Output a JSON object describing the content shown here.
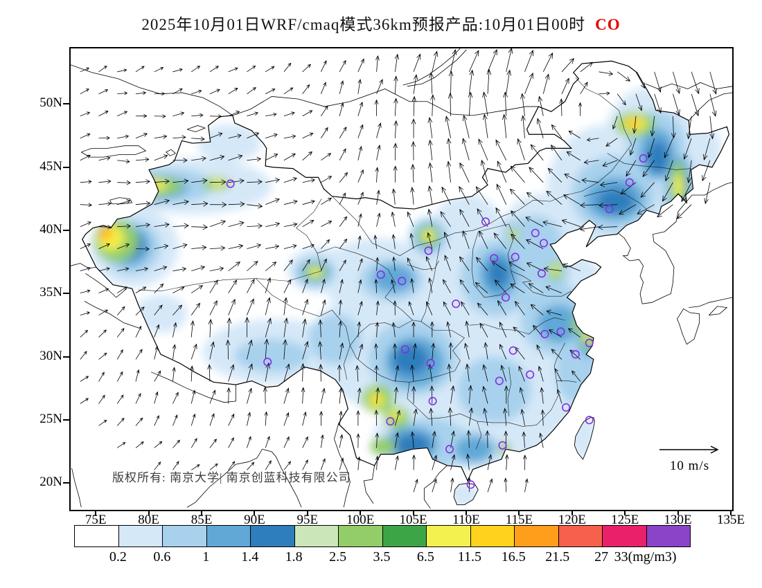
{
  "title": {
    "main": "2025年10月01日WRF/cmaq模式36km预报产品:10月01日00时",
    "species": "CO",
    "species_color": "#E60000"
  },
  "map": {
    "copyright": "版权所有: 南京大学| 南京创蓝科技有限公司",
    "wind_reference_label": "10 m/s"
  },
  "chart_data": {
    "type": "heatmap",
    "subtype": "filled-contour-map-with-wind-vectors",
    "model": "WRF/cmaq",
    "resolution": "36km",
    "forecast_date": "2025-10-01",
    "forecast_hour": "10月01日00时",
    "species": "CO",
    "units": "mg/m3",
    "lon_range": [
      72.5,
      135
    ],
    "lat_range": [
      18,
      54.5
    ],
    "lon_tick_values": [
      75,
      80,
      85,
      90,
      95,
      100,
      105,
      110,
      115,
      120,
      125,
      130,
      135
    ],
    "lon_tick_labels": [
      "75E",
      "80E",
      "85E",
      "90E",
      "95E",
      "100E",
      "105E",
      "110E",
      "115E",
      "120E",
      "125E",
      "130E",
      "135E"
    ],
    "lat_tick_values": [
      50,
      45,
      40,
      35,
      30,
      25,
      20
    ],
    "lat_tick_labels": [
      "50N",
      "45N",
      "40N",
      "35N",
      "30N",
      "25N",
      "20N"
    ],
    "colorbar": {
      "boundary_values": [
        0.2,
        0.6,
        1,
        1.4,
        1.8,
        2.5,
        3.5,
        6.5,
        11.5,
        16.5,
        21.5,
        27,
        33
      ],
      "boundary_labels": [
        "0.2",
        "0.6",
        "1",
        "1.4",
        "1.8",
        "2.5",
        "3.5",
        "6.5",
        "11.5",
        "16.5",
        "21.5",
        "27",
        "33(mg/m3)"
      ],
      "colors": [
        "#FFFFFF",
        "#D5E8F8",
        "#A7D1ED",
        "#61A8D7",
        "#2E7DBC",
        "#CBE7B9",
        "#93CD67",
        "#3CA647",
        "#F2F150",
        "#FFD21E",
        "#FF9E1A",
        "#F7604C",
        "#E8216A",
        "#8B44C8"
      ],
      "units": "mg/m3"
    },
    "wind_reference": {
      "speed": 10,
      "speed_label": "10 m/s"
    },
    "station_marker_color": "#8A2BE2",
    "stations": [
      [
        87.6,
        43.8
      ],
      [
        91.1,
        29.7
      ],
      [
        101.8,
        36.6
      ],
      [
        103.8,
        36.1
      ],
      [
        106.3,
        38.5
      ],
      [
        111.7,
        40.8
      ],
      [
        112.5,
        37.9
      ],
      [
        116.4,
        39.9
      ],
      [
        117.2,
        39.1
      ],
      [
        114.5,
        38.0
      ],
      [
        123.4,
        41.8
      ],
      [
        125.3,
        43.9
      ],
      [
        126.6,
        45.8
      ],
      [
        117.0,
        36.7
      ],
      [
        113.6,
        34.8
      ],
      [
        108.9,
        34.3
      ],
      [
        104.1,
        30.7
      ],
      [
        106.5,
        29.6
      ],
      [
        114.3,
        30.6
      ],
      [
        117.3,
        31.9
      ],
      [
        118.8,
        32.1
      ],
      [
        121.5,
        31.2
      ],
      [
        120.2,
        30.3
      ],
      [
        115.9,
        28.7
      ],
      [
        113.0,
        28.2
      ],
      [
        106.7,
        26.6
      ],
      [
        102.7,
        25.0
      ],
      [
        119.3,
        26.1
      ],
      [
        121.5,
        25.1
      ],
      [
        113.3,
        23.1
      ],
      [
        108.3,
        22.8
      ],
      [
        110.3,
        20.0
      ]
    ],
    "field_blobs": [
      {
        "level": 2,
        "ellipses": [
          [
            104,
            31,
            8.5,
            5.5
          ],
          [
            112,
            33,
            9,
            7
          ],
          [
            118,
            34,
            5.5,
            5
          ],
          [
            113,
            25.5,
            8,
            4.5
          ],
          [
            121,
            29.5,
            3.5,
            4
          ],
          [
            123.5,
            43.5,
            6,
            5
          ],
          [
            127.5,
            47.5,
            4.5,
            4
          ],
          [
            131.5,
            46.5,
            2.5,
            2.5
          ],
          [
            84,
            43.6,
            7.5,
            2.2
          ],
          [
            87.5,
            47,
            3,
            1.5
          ],
          [
            78.5,
            38.8,
            4.2,
            3.2
          ],
          [
            101.5,
            36.5,
            5.5,
            3
          ],
          [
            92,
            30.5,
            7,
            2.6
          ],
          [
            99,
            31,
            4,
            3.5
          ],
          [
            81,
            33.5,
            2.5,
            1.5
          ],
          [
            110,
            38.5,
            4,
            4.5
          ],
          [
            106,
            23.5,
            5,
            3
          ],
          [
            117,
            39.5,
            4,
            3.5
          ],
          [
            122,
            41,
            3.5,
            2.5
          ],
          [
            130,
            44,
            2.5,
            4
          ],
          [
            96,
            37,
            3,
            1.8
          ],
          [
            109.5,
            19.2,
            1.6,
            1
          ],
          [
            121,
            23.8,
            1.1,
            1.8
          ]
        ]
      },
      {
        "level": 3,
        "ellipses": [
          [
            104.8,
            30,
            4.2,
            3
          ],
          [
            112.8,
            36.3,
            3.5,
            3
          ],
          [
            118.5,
            33,
            3.5,
            2.8
          ],
          [
            112.5,
            27.5,
            3.5,
            2.6
          ],
          [
            123.8,
            43,
            4,
            3
          ],
          [
            127.8,
            46.8,
            2.8,
            2.8
          ],
          [
            81.5,
            43.6,
            4.5,
            1.4
          ],
          [
            78.2,
            38.8,
            2.8,
            2.2
          ],
          [
            102.8,
            36.2,
            3,
            1.7
          ],
          [
            106.5,
            23.3,
            3.5,
            2
          ],
          [
            120.3,
            29,
            2,
            2.6
          ],
          [
            116.3,
            39.3,
            2.6,
            2
          ],
          [
            129.8,
            43.8,
            1.6,
            3
          ],
          [
            95.6,
            36.8,
            2,
            1.2
          ],
          [
            106.3,
            39.6,
            1.8,
            1.5
          ],
          [
            91.5,
            30.2,
            3.5,
            1.3
          ],
          [
            97.5,
            31.5,
            2.5,
            2
          ],
          [
            110.3,
            22.9,
            2.6,
            1.4
          ],
          [
            117.8,
            36.8,
            1.8,
            1.6
          ],
          [
            114.5,
            39.9,
            1.3,
            1.1
          ]
        ]
      },
      {
        "level": 4,
        "ellipses": [
          [
            105,
            29.7,
            2.8,
            2
          ],
          [
            112.9,
            36.6,
            1.8,
            1.9
          ],
          [
            118.6,
            32.7,
            2,
            1.5
          ],
          [
            123.9,
            42.6,
            2.8,
            1.7
          ],
          [
            127.9,
            46.2,
            1.7,
            2
          ],
          [
            80.6,
            43.5,
            3,
            0.95
          ],
          [
            78,
            38.9,
            2,
            1.6
          ],
          [
            104.6,
            23.2,
            2.6,
            1.4
          ],
          [
            95.6,
            36.8,
            1.4,
            0.85
          ],
          [
            106.3,
            39.6,
            1.2,
            1.05
          ],
          [
            130,
            43.8,
            1.1,
            2.2
          ],
          [
            110.6,
            22.8,
            1.8,
            1
          ],
          [
            121.4,
            31.4,
            1,
            1.3
          ],
          [
            103,
            36.3,
            2,
            1.1
          ]
        ]
      },
      {
        "level": 5,
        "ellipses": [
          [
            104.6,
            29.9,
            1.7,
            1.2
          ],
          [
            124,
            42.4,
            1.7,
            1
          ],
          [
            80.2,
            43.5,
            2.2,
            0.7
          ],
          [
            77.9,
            39,
            1.5,
            1.2
          ],
          [
            128,
            45.9,
            1,
            1.3
          ],
          [
            104.8,
            23.1,
            1.7,
            0.9
          ],
          [
            130.1,
            43.6,
            0.75,
            1.6
          ],
          [
            112.9,
            36.7,
            1,
            1.1
          ]
        ]
      },
      {
        "level": 7,
        "ellipses": [
          [
            76.8,
            39.3,
            2.1,
            1.7
          ],
          [
            80.7,
            43.6,
            2.4,
            0.75
          ],
          [
            86.3,
            43.8,
            1.3,
            0.55
          ],
          [
            125.8,
            48.5,
            1.9,
            1
          ],
          [
            129.9,
            43.7,
            0.75,
            1.9
          ],
          [
            95.6,
            36.8,
            1.05,
            0.6
          ],
          [
            106.3,
            39.65,
            1,
            0.8
          ],
          [
            101.5,
            26.8,
            1.5,
            1.1
          ],
          [
            103.3,
            25.3,
            1.2,
            0.9
          ],
          [
            121.4,
            31.6,
            0.7,
            0.95
          ],
          [
            118.3,
            36.9,
            0.65,
            0.8
          ],
          [
            114.3,
            39.8,
            0.55,
            0.45
          ],
          [
            113.5,
            22.9,
            0.6,
            0.45
          ],
          [
            120.3,
            32.6,
            0.5,
            0.65
          ],
          [
            102,
            23,
            1.2,
            0.7
          ]
        ]
      },
      {
        "level": 9,
        "ellipses": [
          [
            76.3,
            39.5,
            1.25,
            1
          ],
          [
            80.3,
            43.65,
            1.3,
            0.45
          ],
          [
            125.8,
            48.55,
            1.1,
            0.6
          ],
          [
            95.6,
            36.8,
            0.6,
            0.35
          ],
          [
            106.3,
            39.7,
            0.55,
            0.45
          ],
          [
            101.4,
            26.7,
            0.75,
            0.55
          ],
          [
            129.9,
            43.6,
            0.4,
            1
          ],
          [
            114.3,
            39.8,
            0.28,
            0.24
          ],
          [
            121.4,
            31.8,
            0.35,
            0.45
          ],
          [
            103.2,
            25.5,
            0.55,
            0.4
          ],
          [
            118.3,
            37,
            0.3,
            0.4
          ],
          [
            86.4,
            43.85,
            0.6,
            0.3
          ]
        ]
      },
      {
        "level": 10,
        "ellipses": [
          [
            75.9,
            39.8,
            0.75,
            0.6
          ],
          [
            80,
            43.7,
            0.8,
            0.3
          ],
          [
            125.7,
            48.6,
            0.65,
            0.38
          ],
          [
            101.3,
            26.7,
            0.4,
            0.3
          ]
        ]
      },
      {
        "level": 11,
        "ellipses": [
          [
            75.7,
            39.9,
            0.4,
            0.32
          ],
          [
            125.7,
            48.6,
            0.33,
            0.2
          ]
        ]
      }
    ]
  }
}
